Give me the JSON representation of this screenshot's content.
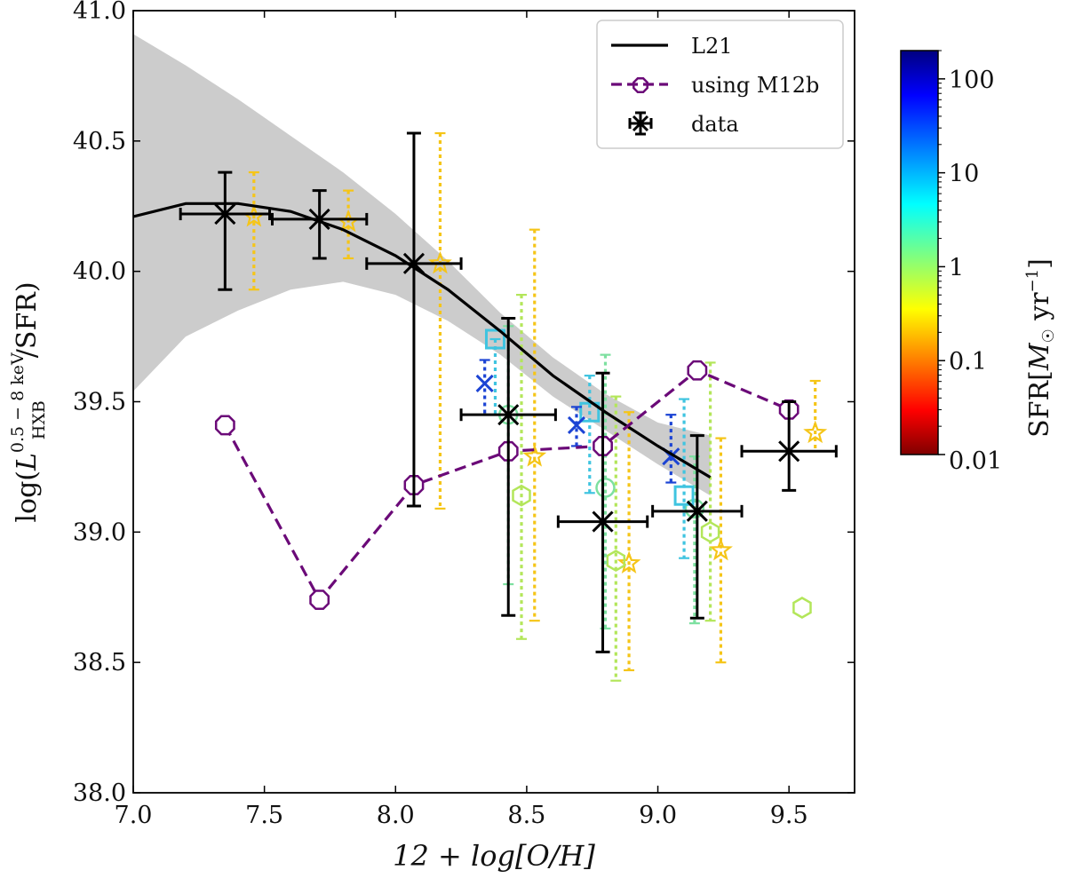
{
  "chart_data": {
    "type": "scatter",
    "xlabel": "12 + log[O/H]",
    "ylabel": "log(L_HXB^{0.5−8 keV}/SFR)",
    "xlim": [
      7.0,
      9.75
    ],
    "ylim": [
      38.0,
      41.0
    ],
    "x_ticks": [
      "7.0",
      "7.5",
      "8.0",
      "8.5",
      "9.0",
      "9.5"
    ],
    "y_ticks": [
      "38.0",
      "38.5",
      "39.0",
      "39.5",
      "40.0",
      "40.5",
      "41.0"
    ],
    "legend": {
      "position": "top-right",
      "entries": [
        {
          "label": "L21",
          "style": "solid-line"
        },
        {
          "label": "using M12b",
          "style": "dashed-purple-octagon"
        },
        {
          "label": "data",
          "style": "black-cross-errorbar"
        }
      ]
    },
    "colors": {
      "model_line": "#000000",
      "band": "#cccccc",
      "m12b": "#6b0a78",
      "data": "#000000"
    },
    "colorbar": {
      "label": "SFR[M☉ yr⁻¹]",
      "scale": "log",
      "range": [
        0.01,
        200
      ],
      "ticks": [
        "0.01",
        "0.1",
        "1",
        "10",
        "100"
      ],
      "tick_values": [
        0.01,
        0.1,
        1,
        10,
        100
      ]
    },
    "l21_line": {
      "x": [
        7.0,
        7.2,
        7.4,
        7.6,
        7.8,
        8.0,
        8.2,
        8.4,
        8.6,
        8.8,
        9.0,
        9.2
      ],
      "y": [
        40.21,
        40.26,
        40.26,
        40.23,
        40.16,
        40.06,
        39.93,
        39.77,
        39.6,
        39.46,
        39.33,
        39.21
      ]
    },
    "band": {
      "x": [
        7.0,
        7.2,
        7.4,
        7.6,
        7.8,
        8.0,
        8.2,
        8.4,
        8.6,
        8.8,
        9.0,
        9.2
      ],
      "upper": [
        40.91,
        40.79,
        40.66,
        40.52,
        40.38,
        40.22,
        40.04,
        39.84,
        39.67,
        39.53,
        39.42,
        39.37
      ],
      "lower": [
        39.54,
        39.75,
        39.85,
        39.93,
        39.96,
        39.91,
        39.81,
        39.68,
        39.52,
        39.39,
        39.26,
        39.14
      ]
    },
    "m12b_series": {
      "name": "using M12b",
      "x": [
        7.35,
        7.71,
        8.07,
        8.43,
        8.79,
        9.15,
        9.5
      ],
      "y": [
        39.41,
        38.74,
        39.18,
        39.31,
        39.33,
        39.62,
        39.47
      ]
    },
    "data_points": [
      {
        "x": 7.35,
        "y": 40.22,
        "xerr": 0.17,
        "ylo": 39.93,
        "yhi": 40.38
      },
      {
        "x": 7.71,
        "y": 40.2,
        "xerr": 0.18,
        "ylo": 40.05,
        "yhi": 40.31
      },
      {
        "x": 8.07,
        "y": 40.03,
        "xerr": 0.18,
        "ylo": 39.1,
        "yhi": 40.53
      },
      {
        "x": 8.43,
        "y": 39.45,
        "xerr": 0.18,
        "ylo": 38.68,
        "yhi": 39.82
      },
      {
        "x": 8.79,
        "y": 39.04,
        "xerr": 0.17,
        "ylo": 38.54,
        "yhi": 39.61
      },
      {
        "x": 9.15,
        "y": 39.08,
        "xerr": 0.17,
        "ylo": 38.67,
        "yhi": 39.37
      },
      {
        "x": 9.5,
        "y": 39.31,
        "xerr": 0.18,
        "ylo": 39.16,
        "yhi": 39.5
      }
    ],
    "colored_points": [
      {
        "marker": "star",
        "x": 7.46,
        "y": 40.21,
        "ylo": 39.93,
        "yhi": 40.38,
        "color": "#f5c518"
      },
      {
        "marker": "star",
        "x": 7.82,
        "y": 40.19,
        "ylo": 40.05,
        "yhi": 40.31,
        "color": "#f5c518"
      },
      {
        "marker": "star",
        "x": 8.17,
        "y": 40.03,
        "ylo": 39.09,
        "yhi": 40.53,
        "color": "#f5c518"
      },
      {
        "marker": "star",
        "x": 8.53,
        "y": 39.29,
        "ylo": 38.66,
        "yhi": 40.16,
        "color": "#f5c518"
      },
      {
        "marker": "star",
        "x": 8.89,
        "y": 38.88,
        "ylo": 38.47,
        "yhi": 39.46,
        "color": "#f5c518"
      },
      {
        "marker": "star",
        "x": 9.24,
        "y": 38.93,
        "ylo": 38.5,
        "yhi": 39.36,
        "color": "#f5c518"
      },
      {
        "marker": "star",
        "x": 9.6,
        "y": 39.38,
        "ylo": 39.31,
        "yhi": 39.58,
        "color": "#f5c518"
      },
      {
        "marker": "hexagon",
        "x": 8.48,
        "y": 39.14,
        "ylo": 38.59,
        "yhi": 39.91,
        "color": "#b3e65a"
      },
      {
        "marker": "hexagon",
        "x": 8.84,
        "y": 38.89,
        "ylo": 38.43,
        "yhi": 39.52,
        "color": "#b3e65a"
      },
      {
        "marker": "hexagon",
        "x": 9.2,
        "y": 39.0,
        "ylo": 38.66,
        "yhi": 39.65,
        "color": "#b3e65a"
      },
      {
        "marker": "hexagon",
        "x": 9.55,
        "y": 38.71,
        "ylo": 38.71,
        "yhi": 38.71,
        "color": "#b3e65a"
      },
      {
        "marker": "circle",
        "x": 8.43,
        "y": 39.45,
        "ylo": 38.8,
        "yhi": 39.79,
        "color": "#7de0a0"
      },
      {
        "marker": "circle",
        "x": 8.8,
        "y": 39.17,
        "ylo": 38.63,
        "yhi": 39.68,
        "color": "#7de0a0"
      },
      {
        "marker": "circle",
        "x": 9.14,
        "y": 39.09,
        "ylo": 38.65,
        "yhi": 39.29,
        "color": "#7de0a0"
      },
      {
        "marker": "square",
        "x": 8.38,
        "y": 39.74,
        "ylo": 39.45,
        "yhi": 39.74,
        "color": "#3fc4e0"
      },
      {
        "marker": "square",
        "x": 8.74,
        "y": 39.46,
        "ylo": 39.15,
        "yhi": 39.6,
        "color": "#3fc4e0"
      },
      {
        "marker": "square",
        "x": 9.1,
        "y": 39.14,
        "ylo": 38.9,
        "yhi": 39.51,
        "color": "#3fc4e0"
      },
      {
        "marker": "x",
        "x": 8.34,
        "y": 39.57,
        "ylo": 39.45,
        "yhi": 39.66,
        "color": "#1c44d4"
      },
      {
        "marker": "x",
        "x": 8.69,
        "y": 39.41,
        "ylo": 39.33,
        "yhi": 39.48,
        "color": "#1c44d4"
      },
      {
        "marker": "x",
        "x": 9.05,
        "y": 39.29,
        "ylo": 39.19,
        "yhi": 39.45,
        "color": "#1c44d4"
      }
    ]
  }
}
